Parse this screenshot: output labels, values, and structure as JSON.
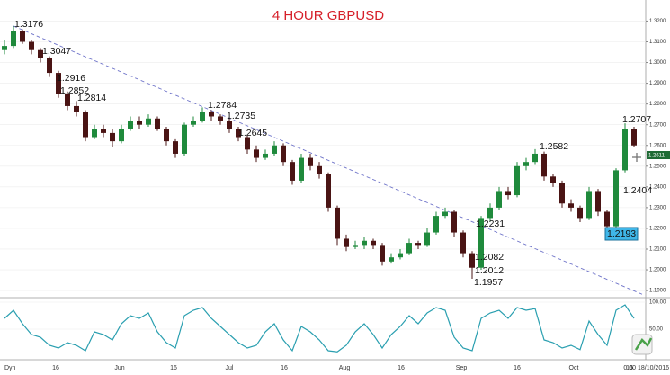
{
  "chart_data": [
    {
      "type": "candlestick",
      "title": "4 HOUR GBPUSD",
      "x_labels": [
        "Dyn",
        "16",
        "Jun",
        "16",
        "Jul",
        "16",
        "Aug",
        "16",
        "Sep",
        "16",
        "Oct",
        "16"
      ],
      "date_label": "0.00 18/10/2016",
      "open": [
        1.306,
        1.308,
        1.315,
        1.31,
        1.306,
        1.302,
        1.295,
        1.285,
        1.279,
        1.276,
        1.264,
        1.268,
        1.266,
        1.262,
        1.268,
        1.272,
        1.27,
        1.273,
        1.268,
        1.262,
        1.256,
        1.27,
        1.272,
        1.276,
        1.274,
        1.272,
        1.268,
        1.264,
        1.258,
        1.254,
        1.256,
        1.26,
        1.252,
        1.243,
        1.254,
        1.25,
        1.246,
        1.23,
        1.215,
        1.211,
        1.212,
        1.214,
        1.212,
        1.204,
        1.206,
        1.208,
        1.213,
        1.212,
        1.218,
        1.226,
        1.228,
        1.218,
        1.208,
        1.201,
        1.225,
        1.23,
        1.238,
        1.236,
        1.25,
        1.252,
        1.256,
        1.245,
        1.242,
        1.232,
        1.23,
        1.225,
        1.238,
        1.228,
        1.221,
        1.248,
        1.268
      ],
      "high": [
        1.311,
        1.3176,
        1.316,
        1.311,
        1.307,
        1.303,
        1.296,
        1.286,
        1.2814,
        1.277,
        1.27,
        1.27,
        1.268,
        1.27,
        1.274,
        1.274,
        1.275,
        1.274,
        1.269,
        1.263,
        1.271,
        1.274,
        1.2784,
        1.277,
        1.275,
        1.2735,
        1.269,
        1.265,
        1.26,
        1.258,
        1.262,
        1.261,
        1.253,
        1.256,
        1.256,
        1.252,
        1.247,
        1.231,
        1.217,
        1.214,
        1.216,
        1.215,
        1.213,
        1.208,
        1.21,
        1.215,
        1.214,
        1.22,
        1.228,
        1.23,
        1.229,
        1.219,
        1.209,
        1.226,
        1.232,
        1.24,
        1.24,
        1.252,
        1.254,
        1.2582,
        1.257,
        1.246,
        1.243,
        1.234,
        1.231,
        1.24,
        1.239,
        1.229,
        1.249,
        1.2707,
        1.269
      ],
      "low": [
        1.304,
        1.307,
        1.309,
        1.304,
        1.3,
        1.293,
        1.283,
        1.277,
        1.274,
        1.262,
        1.263,
        1.264,
        1.259,
        1.261,
        1.267,
        1.268,
        1.269,
        1.267,
        1.26,
        1.254,
        1.255,
        1.269,
        1.271,
        1.272,
        1.27,
        1.266,
        1.262,
        1.256,
        1.252,
        1.253,
        1.255,
        1.25,
        1.241,
        1.242,
        1.248,
        1.244,
        1.228,
        1.212,
        1.209,
        1.21,
        1.21,
        1.21,
        1.202,
        1.203,
        1.205,
        1.207,
        1.21,
        1.211,
        1.217,
        1.225,
        1.216,
        1.206,
        1.1957,
        1.2,
        1.2231,
        1.229,
        1.234,
        1.235,
        1.248,
        1.251,
        1.243,
        1.24,
        1.23,
        1.228,
        1.223,
        1.224,
        1.226,
        1.2193,
        1.22,
        1.247,
        1.259
      ],
      "close": [
        1.308,
        1.315,
        1.31,
        1.306,
        1.302,
        1.295,
        1.285,
        1.279,
        1.276,
        1.264,
        1.268,
        1.266,
        1.262,
        1.268,
        1.272,
        1.27,
        1.273,
        1.268,
        1.262,
        1.256,
        1.27,
        1.272,
        1.276,
        1.274,
        1.272,
        1.268,
        1.264,
        1.258,
        1.254,
        1.256,
        1.26,
        1.252,
        1.243,
        1.254,
        1.25,
        1.246,
        1.23,
        1.215,
        1.211,
        1.212,
        1.214,
        1.212,
        1.204,
        1.206,
        1.208,
        1.213,
        1.212,
        1.218,
        1.226,
        1.228,
        1.218,
        1.208,
        1.201,
        1.225,
        1.23,
        1.238,
        1.236,
        1.25,
        1.252,
        1.256,
        1.245,
        1.242,
        1.232,
        1.23,
        1.225,
        1.238,
        1.228,
        1.221,
        1.248,
        1.268,
        1.26
      ],
      "up_color": "#1f8a3c",
      "down_color": "#4a1414",
      "trendline": [
        1.3176,
        1.188
      ],
      "trendline_color": "#6f74c9",
      "annotations": [
        "1.3176",
        "1.3047",
        "1.2916",
        "1.2852",
        "1.2814",
        "1.2784",
        "1.2735",
        "1.2645",
        "1.2582",
        "1.2707",
        "1.2404",
        "1.2231",
        "1.2082",
        "1.2012",
        "1.1957",
        "1.2193"
      ],
      "last_price_label": "1.2611",
      "ylim": [
        1.187,
        1.328
      ],
      "yticks": [
        {
          "value": 1.19,
          "label": "1.1900"
        },
        {
          "value": 1.2,
          "label": "1.2000"
        },
        {
          "value": 1.21,
          "label": "1.2100"
        },
        {
          "value": 1.22,
          "label": "1.2200"
        },
        {
          "value": 1.23,
          "label": "1.2300"
        },
        {
          "value": 1.24,
          "label": "1.2400"
        },
        {
          "value": 1.25,
          "label": "1.2500"
        },
        {
          "value": 1.26,
          "label": "1.2600"
        },
        {
          "value": 1.27,
          "label": "1.2700"
        },
        {
          "value": 1.28,
          "label": "1.2800"
        },
        {
          "value": 1.29,
          "label": "1.2900"
        },
        {
          "value": 1.3,
          "label": "1.3000"
        },
        {
          "value": 1.31,
          "label": "1.3100"
        },
        {
          "value": 1.32,
          "label": "1.3200"
        }
      ],
      "grid": true
    },
    {
      "type": "line",
      "series": [
        {
          "color": "#2a9fb0",
          "values": [
            70,
            85,
            60,
            40,
            35,
            20,
            15,
            25,
            20,
            10,
            45,
            40,
            30,
            60,
            75,
            70,
            80,
            45,
            25,
            15,
            75,
            85,
            90,
            70,
            55,
            40,
            25,
            15,
            20,
            45,
            60,
            30,
            10,
            55,
            45,
            30,
            10,
            8,
            20,
            45,
            60,
            40,
            15,
            40,
            55,
            75,
            60,
            80,
            90,
            85,
            35,
            15,
            10,
            70,
            80,
            85,
            70,
            90,
            85,
            88,
            30,
            25,
            15,
            20,
            12,
            65,
            40,
            20,
            85,
            95,
            70
          ]
        }
      ],
      "ylim": [
        0,
        100
      ],
      "yticks": [
        {
          "value": 100,
          "label": "100.00"
        },
        {
          "value": 50,
          "label": "50.00"
        }
      ],
      "grid": true
    }
  ]
}
